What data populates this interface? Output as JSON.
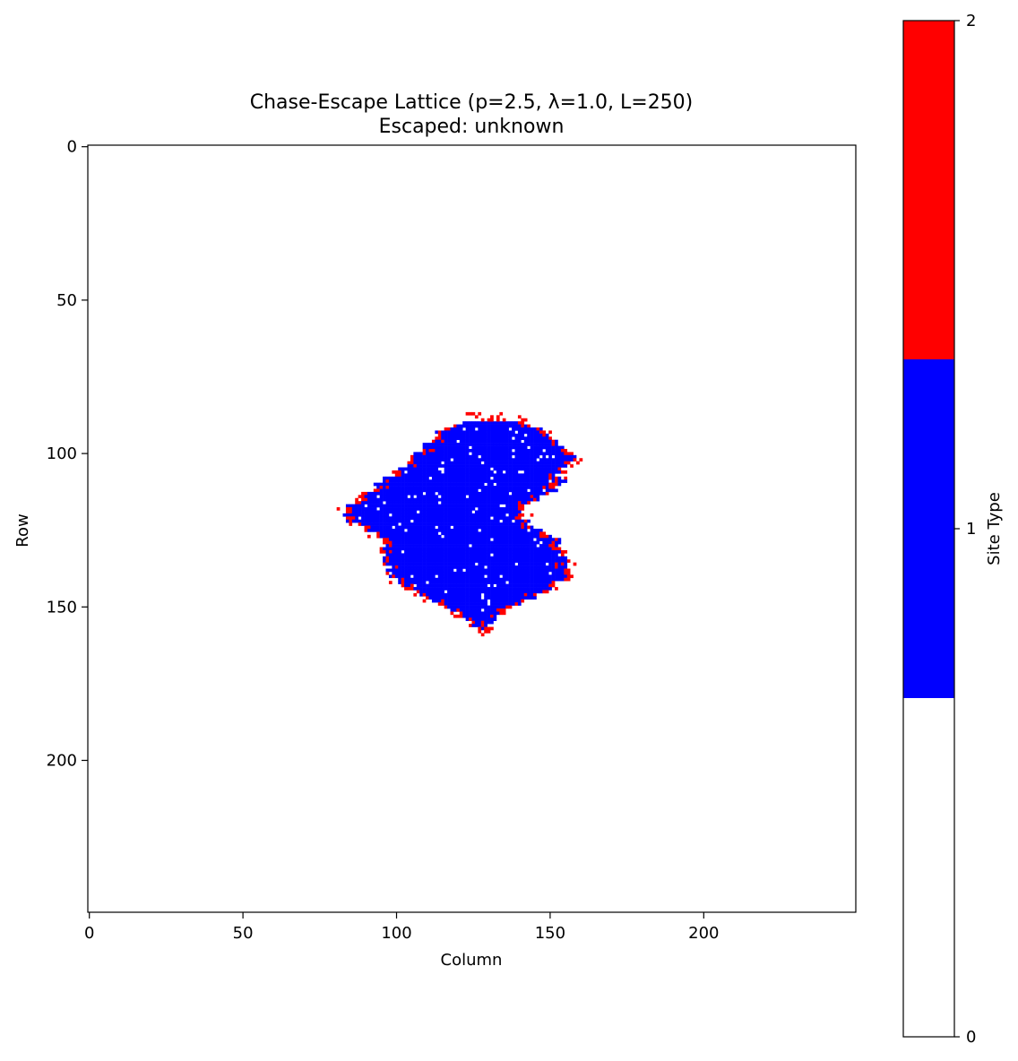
{
  "chart_data": {
    "type": "heatmap",
    "title": "Chase-Escape Lattice (p=2.5, λ=1.0, L=250)",
    "subtitle": "Escaped: unknown",
    "xlabel": "Column",
    "ylabel": "Row",
    "xlim": [
      -0.5,
      249.5
    ],
    "ylim": [
      249.5,
      -0.5
    ],
    "x_ticks": [
      0,
      50,
      100,
      150,
      200
    ],
    "y_ticks": [
      0,
      50,
      100,
      150,
      200
    ],
    "grid": false,
    "colorbar": {
      "label": "Site Type",
      "ticks": [
        0,
        1,
        2
      ],
      "levels": [
        {
          "value": 0,
          "color": "#ffffff"
        },
        {
          "value": 1,
          "color": "#0000ff"
        },
        {
          "value": 2,
          "color": "#ff0000"
        }
      ]
    },
    "cluster": {
      "blue_region": [
        {
          "row": 90,
          "col_start": 122,
          "col_end": 142
        },
        {
          "row": 92,
          "col_start": 116,
          "col_end": 146
        },
        {
          "row": 95,
          "col_start": 112,
          "col_end": 150
        },
        {
          "row": 98,
          "col_start": 109,
          "col_end": 154
        },
        {
          "row": 101,
          "col_start": 106,
          "col_end": 157
        },
        {
          "row": 104,
          "col_start": 103,
          "col_end": 156
        },
        {
          "row": 107,
          "col_start": 99,
          "col_end": 152
        },
        {
          "row": 110,
          "col_start": 94,
          "col_end": 154
        },
        {
          "row": 113,
          "col_start": 90,
          "col_end": 150
        },
        {
          "row": 116,
          "col_start": 86,
          "col_end": 143
        },
        {
          "row": 119,
          "col_start": 83,
          "col_end": 140
        },
        {
          "row": 122,
          "col_start": 85,
          "col_end": 142
        },
        {
          "row": 125,
          "col_start": 91,
          "col_end": 146
        },
        {
          "row": 128,
          "col_start": 96,
          "col_end": 152
        },
        {
          "row": 131,
          "col_start": 96,
          "col_end": 153
        },
        {
          "row": 134,
          "col_start": 97,
          "col_end": 154
        },
        {
          "row": 137,
          "col_start": 98,
          "col_end": 155
        },
        {
          "row": 140,
          "col_start": 99,
          "col_end": 157
        },
        {
          "row": 143,
          "col_start": 102,
          "col_end": 150
        },
        {
          "row": 146,
          "col_start": 108,
          "col_end": 146
        },
        {
          "row": 149,
          "col_start": 115,
          "col_end": 140
        },
        {
          "row": 152,
          "col_start": 120,
          "col_end": 134
        },
        {
          "row": 155,
          "col_start": 124,
          "col_end": 131
        },
        {
          "row": 157,
          "col_start": 127,
          "col_end": 130
        }
      ]
    }
  }
}
